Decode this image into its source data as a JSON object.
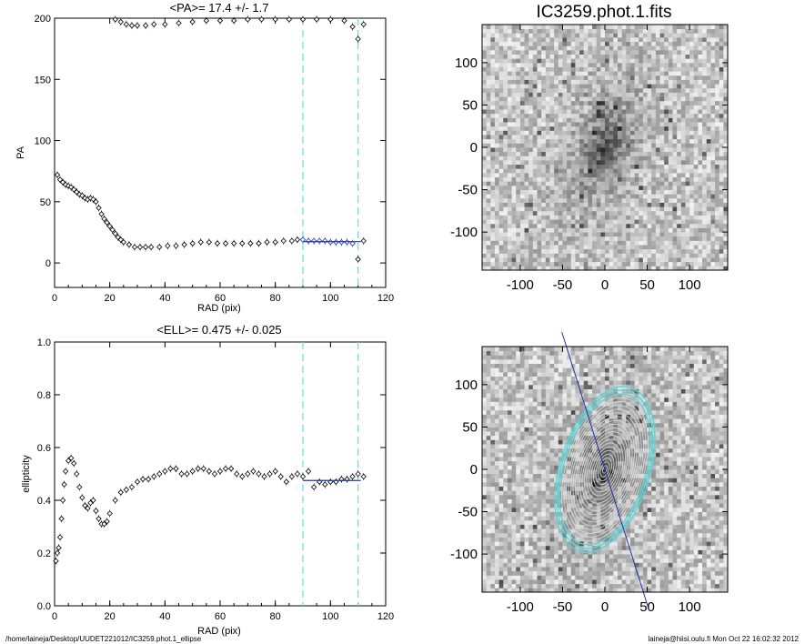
{
  "chart_data": [
    {
      "type": "scatter",
      "title": "<PA>=  17.4 +/-   1.7",
      "xlabel": "RAD (pix)",
      "ylabel": "PA",
      "xlim": [
        0,
        120
      ],
      "ylim": [
        -20,
        200
      ],
      "xticks": [
        "0",
        "20",
        "40",
        "60",
        "80",
        "100",
        "120"
      ],
      "yticks": [
        "0",
        "50",
        "100",
        "150",
        "200"
      ],
      "vlines": [
        90,
        110
      ],
      "fit": {
        "x": [
          90,
          111
        ],
        "y": 17.4
      },
      "series": [
        {
          "x": [
            1,
            2,
            3,
            4,
            5,
            6,
            7,
            8,
            9,
            10,
            11,
            12,
            13,
            14,
            15,
            16,
            17,
            18,
            19,
            20,
            21,
            22,
            23,
            24,
            25,
            27,
            29,
            31,
            33,
            35,
            38,
            41,
            44,
            47,
            50,
            53,
            56,
            59,
            62,
            65,
            68,
            71,
            74,
            77,
            80,
            83,
            86,
            88,
            90,
            92,
            94,
            96,
            98,
            100,
            102,
            104,
            106,
            108,
            110,
            112
          ],
          "y": [
            72,
            68,
            66,
            64,
            63,
            62,
            60,
            58,
            56,
            55,
            53,
            52,
            53,
            52,
            50,
            45,
            40,
            36,
            33,
            30,
            27,
            24,
            21,
            19,
            17,
            15,
            13,
            13,
            13,
            13,
            13,
            14,
            14,
            15,
            16,
            17,
            17,
            16,
            16,
            16,
            16,
            16,
            16,
            17,
            17,
            18,
            18,
            19,
            19,
            18,
            18,
            18,
            18,
            17,
            17,
            17,
            17,
            16,
            3,
            18
          ]
        },
        {
          "x": [
            22,
            24,
            26,
            28,
            30,
            33,
            36,
            40,
            45,
            50,
            55,
            60,
            65,
            70,
            75,
            80,
            85,
            90,
            95,
            100,
            105,
            108,
            110,
            112
          ],
          "y": [
            199,
            197,
            195,
            194,
            194,
            194,
            195,
            195,
            196,
            197,
            198,
            198,
            198,
            199,
            199,
            199,
            199,
            199,
            199,
            199,
            198,
            193,
            183,
            195
          ]
        }
      ]
    },
    {
      "type": "scatter",
      "title": "<ELL>= 0.475 +/-  0.025",
      "xlabel": "RAD (pix)",
      "ylabel": "ellipticity",
      "xlim": [
        0,
        120
      ],
      "ylim": [
        0,
        1
      ],
      "xticks": [
        "0",
        "20",
        "40",
        "60",
        "80",
        "100",
        "120"
      ],
      "yticks": [
        "0.0",
        "0.2",
        "0.4",
        "0.6",
        "0.8",
        "1.0"
      ],
      "vlines": [
        90,
        110
      ],
      "fit": {
        "x": [
          90,
          111
        ],
        "y": 0.475
      },
      "series": [
        {
          "x": [
            0.5,
            1,
            1.5,
            2,
            2.5,
            3,
            3.5,
            4,
            5,
            6,
            7,
            8,
            9,
            10,
            11,
            12,
            13,
            14,
            15,
            16,
            17,
            18,
            19,
            20,
            22,
            24,
            26,
            28,
            30,
            32,
            34,
            36,
            38,
            40,
            42,
            44,
            46,
            48,
            50,
            52,
            54,
            56,
            58,
            60,
            62,
            64,
            66,
            68,
            70,
            72,
            74,
            76,
            78,
            80,
            82,
            84,
            86,
            88,
            90,
            92,
            94,
            96,
            98,
            100,
            102,
            104,
            106,
            108,
            110,
            112
          ],
          "y": [
            0.17,
            0.2,
            0.22,
            0.26,
            0.33,
            0.4,
            0.46,
            0.51,
            0.55,
            0.56,
            0.54,
            0.5,
            0.45,
            0.41,
            0.38,
            0.37,
            0.39,
            0.4,
            0.36,
            0.33,
            0.31,
            0.31,
            0.32,
            0.35,
            0.4,
            0.43,
            0.44,
            0.45,
            0.47,
            0.48,
            0.48,
            0.49,
            0.5,
            0.51,
            0.52,
            0.52,
            0.5,
            0.5,
            0.51,
            0.52,
            0.52,
            0.51,
            0.5,
            0.51,
            0.52,
            0.52,
            0.5,
            0.49,
            0.5,
            0.51,
            0.5,
            0.49,
            0.5,
            0.51,
            0.49,
            0.47,
            0.49,
            0.5,
            0.49,
            0.51,
            0.45,
            0.47,
            0.46,
            0.47,
            0.47,
            0.48,
            0.48,
            0.49,
            0.5,
            0.49
          ]
        }
      ]
    },
    {
      "type": "heatmap",
      "title": "IC3259.phot.1.fits",
      "xlim": [
        -145,
        145
      ],
      "ylim": [
        -145,
        145
      ],
      "xticks": [
        "-100",
        "-50",
        "0",
        "50",
        "100"
      ],
      "yticks": [
        "-100",
        "-50",
        "0",
        "50",
        "100"
      ],
      "galaxy_center": [
        0,
        0
      ],
      "galaxy_pa_deg": 17.4,
      "galaxy_ellipticity": 0.475,
      "colormap": "grayscale"
    },
    {
      "type": "heatmap",
      "title": "",
      "xlim": [
        -145,
        145
      ],
      "ylim": [
        -145,
        145
      ],
      "xticks": [
        "-100",
        "-50",
        "0",
        "50",
        "100"
      ],
      "yticks": [
        "-100",
        "-50",
        "0",
        "50",
        "100"
      ],
      "contour_color_inner": "#d9d9d9",
      "contour_color_outer": "#5bd6d6",
      "axis_line_color": "#2233aa"
    }
  ],
  "footer": {
    "left": "/home/laineja/Desktop/UUDET221012/IC3259.phot.1_ellipse",
    "right": "laineja@hiisi.oulu.fi  Mon Oct 22 16:02:32 2012"
  },
  "colors": {
    "vline": "#66dddd",
    "fit": "#2233aa",
    "points": "#000000",
    "fit_points": "#2233aa"
  }
}
